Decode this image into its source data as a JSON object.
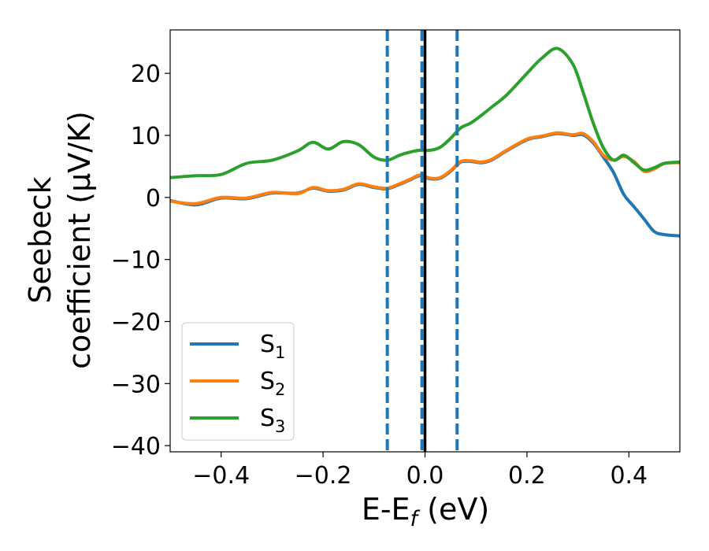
{
  "chart_data": {
    "type": "line",
    "title": "",
    "xlabel": "E-E",
    "xlabel_sub": "f",
    "xlabel_unit": " (eV)",
    "ylabel_line1": "Seebeck",
    "ylabel_line2": "coefficient  (μV/K)",
    "xlim": [
      -0.5,
      0.5
    ],
    "ylim": [
      -41,
      27
    ],
    "x_ticks": [
      -0.4,
      -0.2,
      0.0,
      0.2,
      0.4
    ],
    "x_tick_labels": [
      "−0.4",
      "−0.2",
      "0.0",
      "0.2",
      "0.4"
    ],
    "y_ticks": [
      20,
      10,
      0,
      -10,
      -20,
      -30,
      -40
    ],
    "y_tick_labels": [
      "20",
      "10",
      "0",
      "−10",
      "−20",
      "−30",
      "−40"
    ],
    "grid": false,
    "legend_position": "bottom-left",
    "vertical_lines": [
      {
        "x": -0.074,
        "style": "dashed",
        "color": "#1f77b4"
      },
      {
        "x": -0.006,
        "style": "dashed",
        "color": "#1f77b4"
      },
      {
        "x": 0.0,
        "style": "solid",
        "color": "#000000"
      },
      {
        "x": 0.063,
        "style": "dashed",
        "color": "#1f77b4"
      }
    ],
    "x": [
      -0.5,
      -0.45,
      -0.4,
      -0.35,
      -0.3,
      -0.25,
      -0.22,
      -0.19,
      -0.16,
      -0.13,
      -0.1,
      -0.074,
      -0.05,
      -0.03,
      -0.01,
      0.01,
      0.03,
      0.05,
      0.07,
      0.09,
      0.11,
      0.13,
      0.16,
      0.2,
      0.23,
      0.26,
      0.29,
      0.31,
      0.33,
      0.35,
      0.37,
      0.39,
      0.41,
      0.43,
      0.45,
      0.47,
      0.5
    ],
    "series": [
      {
        "name": "S",
        "sub": "1",
        "color": "#1f77b4",
        "values": [
          -0.5,
          -1.2,
          -0.1,
          -0.2,
          0.7,
          0.7,
          1.5,
          1.0,
          1.2,
          2.1,
          1.6,
          1.4,
          2.1,
          2.8,
          3.5,
          3.0,
          3.1,
          4.2,
          5.7,
          5.8,
          5.6,
          6.0,
          7.5,
          9.3,
          9.8,
          10.3,
          10.0,
          10.1,
          8.8,
          6.5,
          4.0,
          0.5,
          -1.5,
          -3.5,
          -5.5,
          -6.0,
          -6.2
        ]
      },
      {
        "name": "S",
        "sub": "2",
        "color": "#ff7f0e",
        "values": [
          -0.6,
          -1.0,
          0.0,
          -0.1,
          0.8,
          0.6,
          1.6,
          1.1,
          1.3,
          2.2,
          1.7,
          1.5,
          2.2,
          2.9,
          3.6,
          3.1,
          3.2,
          4.3,
          5.8,
          5.9,
          5.7,
          6.1,
          7.6,
          9.4,
          9.9,
          10.4,
          10.1,
          10.3,
          9.0,
          6.8,
          6.0,
          6.6,
          5.8,
          4.2,
          4.6,
          5.5,
          5.6
        ]
      },
      {
        "name": "S",
        "sub": "3",
        "color": "#2ca02c",
        "values": [
          3.2,
          3.5,
          3.7,
          5.5,
          6.0,
          7.5,
          8.9,
          7.8,
          9.0,
          8.5,
          6.5,
          6.0,
          6.8,
          7.3,
          7.6,
          7.6,
          8.1,
          9.5,
          11.2,
          12.0,
          13.2,
          14.5,
          16.5,
          20.0,
          22.5,
          24.0,
          21.5,
          17.0,
          12.0,
          8.0,
          6.0,
          6.8,
          5.6,
          4.4,
          4.8,
          5.5,
          5.7
        ]
      }
    ]
  }
}
